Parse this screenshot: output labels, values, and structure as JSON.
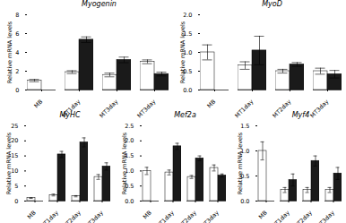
{
  "chart_data": [
    {
      "type": "bar",
      "title": "Myogenin",
      "ylabel": "Relative mRNA levels",
      "categories": [
        "MB",
        "MT1day",
        "MT3day",
        "MT3day"
      ],
      "series": [
        {
          "color": "white",
          "values": [
            1.0,
            1.9,
            1.6,
            3.0
          ],
          "errors": [
            0.12,
            0.15,
            0.2,
            0.2
          ]
        },
        {
          "color": "#1a1a1a",
          "values": [
            null,
            5.35,
            3.2,
            1.7
          ],
          "errors": [
            null,
            0.3,
            0.3,
            0.2
          ]
        }
      ],
      "ylim": [
        0,
        8
      ],
      "yticks": [
        0,
        2,
        4,
        6,
        8
      ]
    },
    {
      "type": "bar",
      "title": "MyoD",
      "ylabel": "Relative mRNA levels",
      "categories": [
        "MB",
        "MT1day",
        "MT2day",
        "MT3day"
      ],
      "series": [
        {
          "color": "white",
          "values": [
            1.0,
            0.65,
            0.5,
            0.5
          ],
          "errors": [
            0.2,
            0.1,
            0.05,
            0.08
          ]
        },
        {
          "color": "#1a1a1a",
          "values": [
            null,
            1.05,
            0.68,
            0.42
          ],
          "errors": [
            null,
            0.38,
            0.05,
            0.1
          ]
        }
      ],
      "ylim": [
        0.0,
        2.0
      ],
      "yticks": [
        {
          "value": 0,
          "label": "0.0"
        },
        0.5,
        {
          "value": 1,
          "label": "1.0"
        },
        1.5,
        {
          "value": 2,
          "label": "2.0"
        }
      ]
    },
    {
      "type": "bar",
      "title": "MyHC",
      "ylabel": "Relative mRNA levels",
      "categories": [
        "MB",
        "MT1day",
        "MT2day",
        "MT3day"
      ],
      "series": [
        {
          "color": "white",
          "values": [
            1.0,
            2.0,
            1.6,
            8.0
          ],
          "errors": [
            0.1,
            0.3,
            0.2,
            0.8
          ]
        },
        {
          "color": "#1a1a1a",
          "values": [
            null,
            15.5,
            19.5,
            11.5
          ],
          "errors": [
            null,
            1.0,
            1.5,
            1.2
          ]
        }
      ],
      "ylim": [
        0,
        25
      ],
      "yticks": [
        0,
        5,
        10,
        15,
        20,
        25
      ]
    },
    {
      "type": "bar",
      "title": "Mef2a",
      "ylabel": "Relative mRNA levels",
      "categories": [
        "MB",
        "MT1day",
        "MT2day",
        "MT3day"
      ],
      "series": [
        {
          "color": "white",
          "values": [
            1.0,
            0.95,
            0.8,
            1.1
          ],
          "errors": [
            0.12,
            0.08,
            0.05,
            0.1
          ]
        },
        {
          "color": "#1a1a1a",
          "values": [
            null,
            1.82,
            1.42,
            0.85
          ],
          "errors": [
            null,
            0.1,
            0.08,
            0.05
          ]
        }
      ],
      "ylim": [
        0.0,
        2.5
      ],
      "yticks": [
        {
          "value": 0,
          "label": "0.0"
        },
        0.5,
        {
          "value": 1,
          "label": "1.0"
        },
        1.5,
        {
          "value": 2,
          "label": "2.0"
        },
        2.5
      ]
    },
    {
      "type": "bar",
      "title": "Myf4",
      "ylabel": "Relative mRNA levels",
      "categories": [
        "MB",
        "MT1day",
        "MT2day",
        "MT3day"
      ],
      "series": [
        {
          "color": "white",
          "values": [
            1.0,
            0.22,
            0.22,
            0.22
          ],
          "errors": [
            0.18,
            0.05,
            0.05,
            0.05
          ]
        },
        {
          "color": "#1a1a1a",
          "values": [
            null,
            0.42,
            0.8,
            0.55
          ],
          "errors": [
            null,
            0.12,
            0.1,
            0.12
          ]
        }
      ],
      "ylim": [
        0.0,
        1.5
      ],
      "yticks": [
        {
          "value": 0,
          "label": "0.0"
        },
        0.5,
        {
          "value": 1,
          "label": "1.0"
        },
        1.5
      ]
    }
  ]
}
